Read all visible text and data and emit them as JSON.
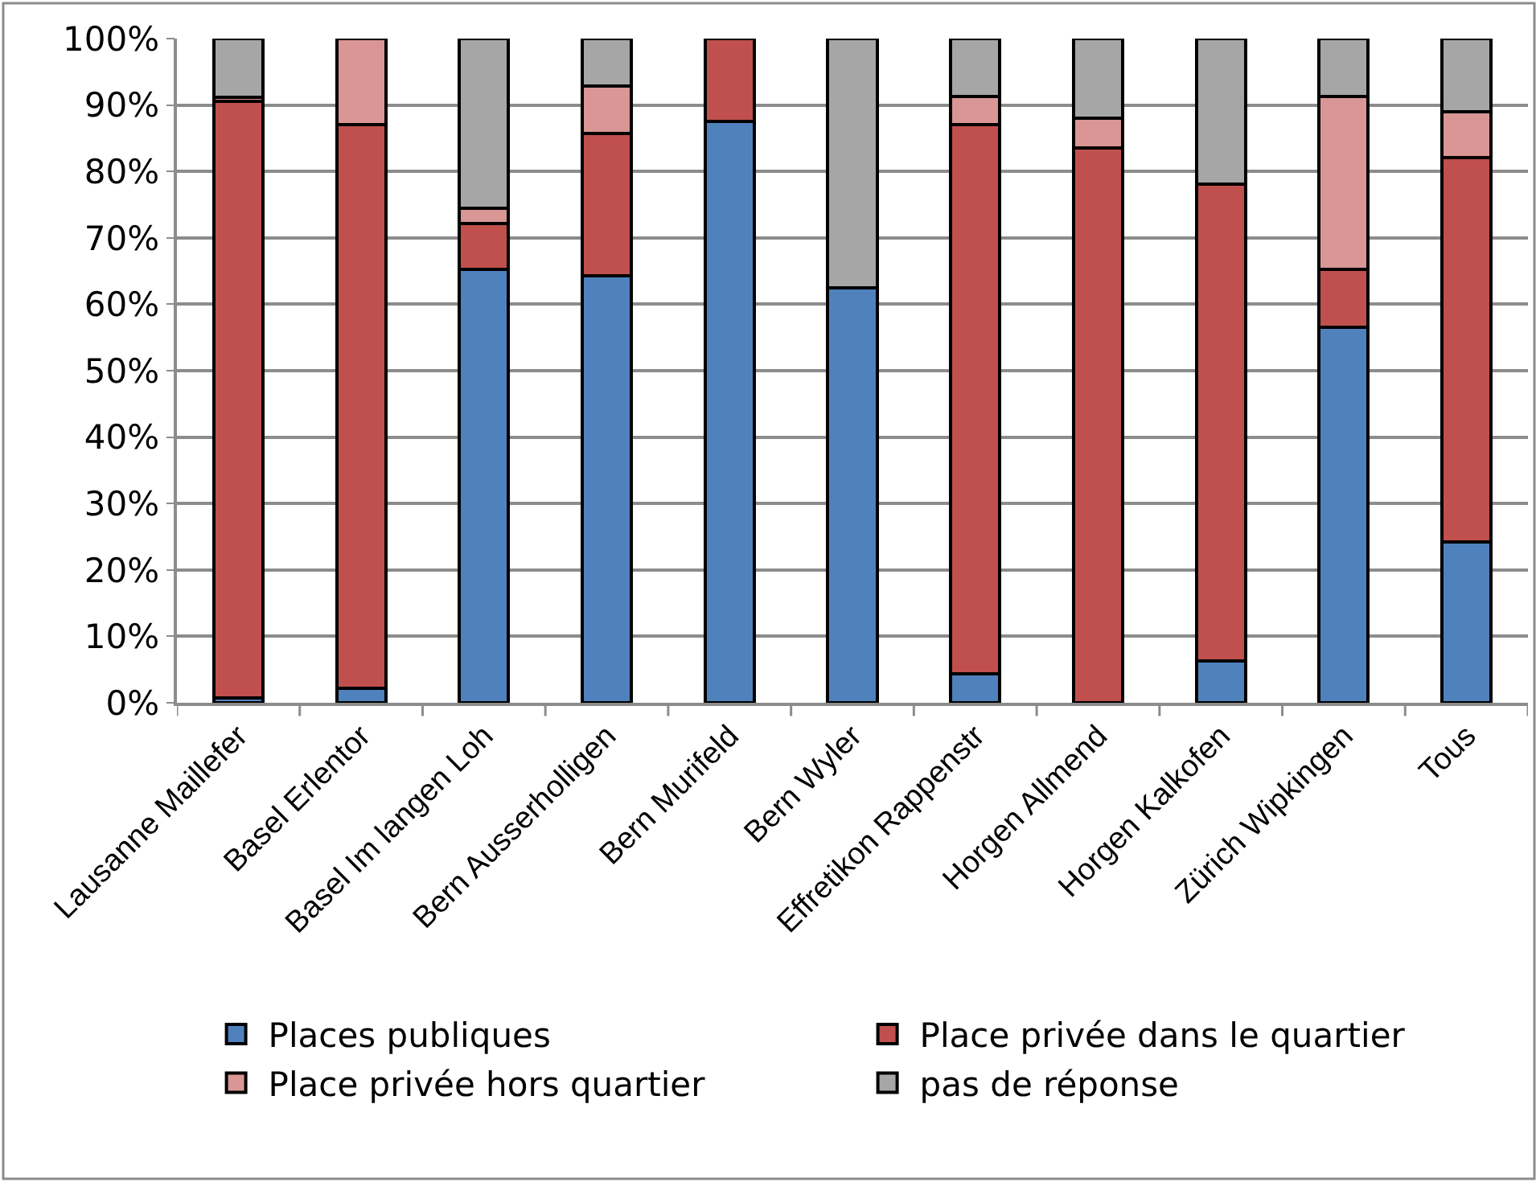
{
  "chart_data": {
    "type": "bar",
    "stacked": true,
    "categories": [
      "Lausanne Maillefer",
      "Basel Erlentor",
      "Basel Im langen Loh",
      "Bern Ausserholligen",
      "Bern Murifeld",
      "Bern Wyler",
      "Effretikon Rappenstr",
      "Horgen Allmend",
      "Horgen Kalkofen",
      "Zürich Wipkingen",
      "Tous"
    ],
    "series": [
      {
        "name": "Places publiques",
        "color": "#4f81bd",
        "values": [
          0.7,
          2.2,
          65.2,
          64.3,
          87.5,
          62.5,
          4.3,
          0,
          6.3,
          56.5,
          24.2
        ]
      },
      {
        "name": "Place privée dans le quartier",
        "color": "#c0504d",
        "values": [
          89.8,
          84.8,
          7,
          21.4,
          12.5,
          0,
          82.7,
          83.5,
          71.8,
          8.7,
          57.9
        ]
      },
      {
        "name": "Place privée hors quartier",
        "color": "#d99694",
        "values": [
          0.7,
          13,
          2.3,
          7.2,
          0,
          0,
          4.3,
          4.5,
          0,
          26.1,
          6.9
        ]
      },
      {
        "name": "pas de réponse",
        "color": "#a6a6a6",
        "values": [
          8.8,
          0,
          25.5,
          7.1,
          0,
          37.5,
          8.7,
          12,
          21.9,
          8.7,
          11
        ]
      }
    ],
    "ylim": [
      0,
      100
    ],
    "yticks": [
      {
        "value": 0,
        "label": "0%"
      },
      {
        "value": 10,
        "label": "10%"
      },
      {
        "value": 20,
        "label": "20%"
      },
      {
        "value": 30,
        "label": "30%"
      },
      {
        "value": 40,
        "label": "40%"
      },
      {
        "value": 50,
        "label": "50%"
      },
      {
        "value": 60,
        "label": "60%"
      },
      {
        "value": 70,
        "label": "70%"
      },
      {
        "value": 80,
        "label": "80%"
      },
      {
        "value": 90,
        "label": "90%"
      },
      {
        "value": 100,
        "label": "100%"
      }
    ],
    "grid": "y",
    "legend": "bottom"
  }
}
